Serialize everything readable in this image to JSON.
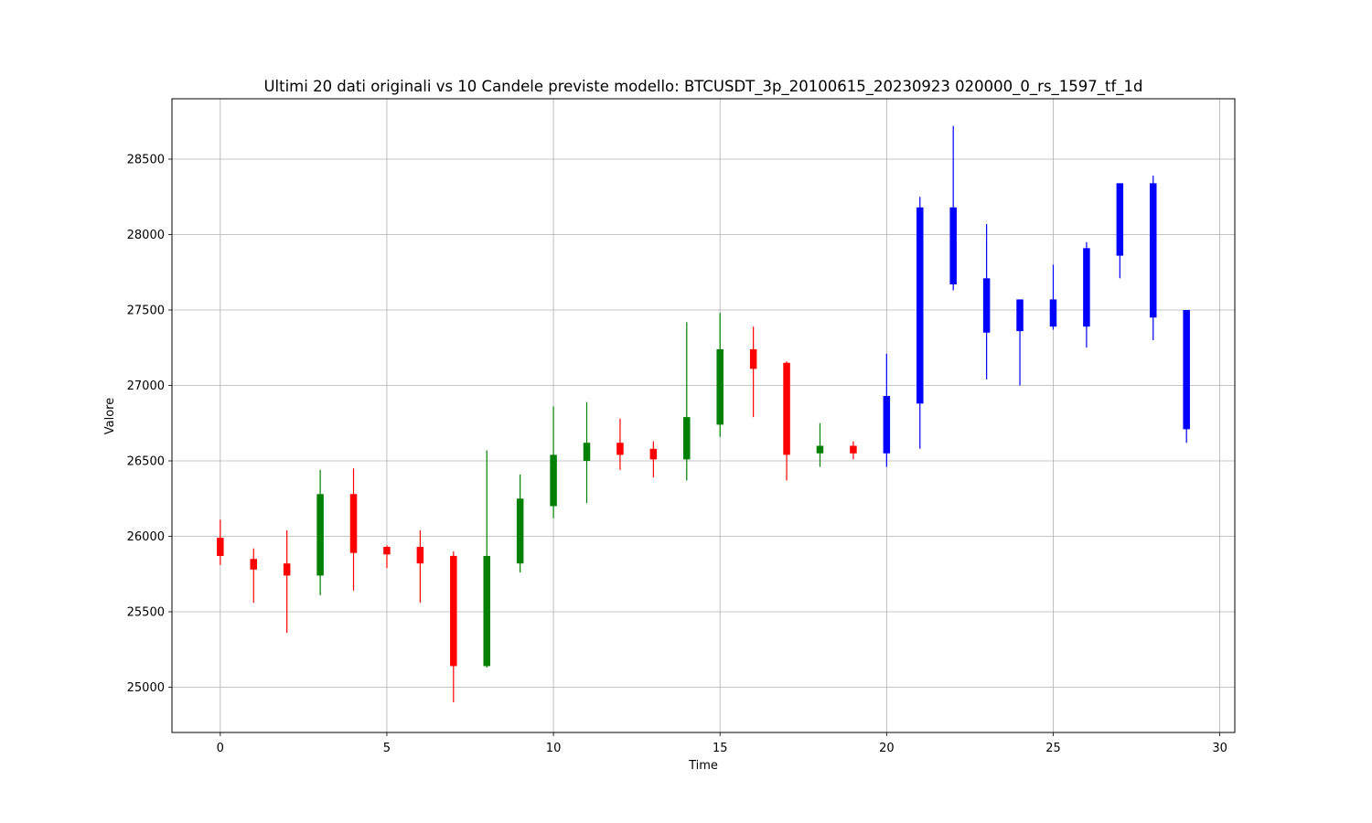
{
  "chart_data": {
    "type": "candlestick",
    "title": "Ultimi 20 dati originali vs 10 Candele previste modello: BTCUSDT_3p_20100615_20230923 020000_0_rs_1597_tf_1d",
    "xlabel": "Time",
    "ylabel": "Valore",
    "xlim": [
      -1.45,
      30.45
    ],
    "ylim": [
      24700,
      28900
    ],
    "xticks": [
      0,
      5,
      10,
      15,
      20,
      25,
      30
    ],
    "yticks": [
      25000,
      25500,
      26000,
      26500,
      27000,
      27500,
      28000,
      28500
    ],
    "grid": true,
    "colors": {
      "up": "#008000",
      "down": "#ff0000",
      "forecast": "#0000ff"
    },
    "candles": [
      {
        "t": 0,
        "open": 25990,
        "high": 26110,
        "low": 25810,
        "close": 25870,
        "kind": "down"
      },
      {
        "t": 1,
        "open": 25850,
        "high": 25920,
        "low": 25560,
        "close": 25780,
        "kind": "down"
      },
      {
        "t": 2,
        "open": 25820,
        "high": 26040,
        "low": 25360,
        "close": 25740,
        "kind": "down"
      },
      {
        "t": 3,
        "open": 25740,
        "high": 26440,
        "low": 25610,
        "close": 26280,
        "kind": "up"
      },
      {
        "t": 4,
        "open": 26280,
        "high": 26450,
        "low": 25640,
        "close": 25890,
        "kind": "down"
      },
      {
        "t": 5,
        "open": 25930,
        "high": 25940,
        "low": 25790,
        "close": 25880,
        "kind": "down"
      },
      {
        "t": 6,
        "open": 25930,
        "high": 26040,
        "low": 25560,
        "close": 25820,
        "kind": "down"
      },
      {
        "t": 7,
        "open": 25870,
        "high": 25900,
        "low": 24900,
        "close": 25140,
        "kind": "down"
      },
      {
        "t": 8,
        "open": 25140,
        "high": 26570,
        "low": 25130,
        "close": 25870,
        "kind": "up"
      },
      {
        "t": 9,
        "open": 25820,
        "high": 26410,
        "low": 25760,
        "close": 26250,
        "kind": "up"
      },
      {
        "t": 10,
        "open": 26200,
        "high": 26860,
        "low": 26120,
        "close": 26540,
        "kind": "up"
      },
      {
        "t": 11,
        "open": 26500,
        "high": 26890,
        "low": 26220,
        "close": 26620,
        "kind": "up"
      },
      {
        "t": 12,
        "open": 26620,
        "high": 26780,
        "low": 26440,
        "close": 26540,
        "kind": "down"
      },
      {
        "t": 13,
        "open": 26580,
        "high": 26630,
        "low": 26390,
        "close": 26510,
        "kind": "down"
      },
      {
        "t": 14,
        "open": 26510,
        "high": 27420,
        "low": 26370,
        "close": 26790,
        "kind": "up"
      },
      {
        "t": 15,
        "open": 26740,
        "high": 27480,
        "low": 26660,
        "close": 27240,
        "kind": "up"
      },
      {
        "t": 16,
        "open": 27240,
        "high": 27390,
        "low": 26790,
        "close": 27110,
        "kind": "down"
      },
      {
        "t": 17,
        "open": 27150,
        "high": 27160,
        "low": 26370,
        "close": 26540,
        "kind": "down"
      },
      {
        "t": 18,
        "open": 26550,
        "high": 26750,
        "low": 26460,
        "close": 26600,
        "kind": "up"
      },
      {
        "t": 19,
        "open": 26600,
        "high": 26630,
        "low": 26510,
        "close": 26550,
        "kind": "down"
      },
      {
        "t": 20,
        "open": 26550,
        "high": 27210,
        "low": 26460,
        "close": 26930,
        "kind": "forecast"
      },
      {
        "t": 21,
        "open": 26880,
        "high": 28250,
        "low": 26580,
        "close": 28180,
        "kind": "forecast"
      },
      {
        "t": 22,
        "open": 28180,
        "high": 28720,
        "low": 27630,
        "close": 27670,
        "kind": "forecast"
      },
      {
        "t": 23,
        "open": 27710,
        "high": 28070,
        "low": 27040,
        "close": 27350,
        "kind": "forecast"
      },
      {
        "t": 24,
        "open": 27570,
        "high": 27570,
        "low": 27000,
        "close": 27360,
        "kind": "forecast"
      },
      {
        "t": 25,
        "open": 27570,
        "high": 27800,
        "low": 27370,
        "close": 27390,
        "kind": "forecast"
      },
      {
        "t": 26,
        "open": 27390,
        "high": 27950,
        "low": 27250,
        "close": 27910,
        "kind": "forecast"
      },
      {
        "t": 27,
        "open": 28340,
        "high": 28340,
        "low": 27710,
        "close": 27860,
        "kind": "forecast"
      },
      {
        "t": 28,
        "open": 28340,
        "high": 28390,
        "low": 27300,
        "close": 27450,
        "kind": "forecast"
      },
      {
        "t": 29,
        "open": 27500,
        "high": 27500,
        "low": 26620,
        "close": 26710,
        "kind": "forecast"
      }
    ]
  }
}
